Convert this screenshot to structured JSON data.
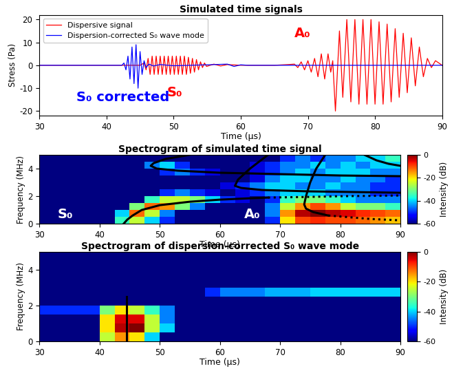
{
  "chart_data": [
    {
      "type": "line",
      "title": "Simulated time signals",
      "x_label": "Time (μs)",
      "y_label": "Stress (Pa)",
      "xlim": [
        30,
        90
      ],
      "xticks": [
        30,
        40,
        50,
        60,
        70,
        80,
        90
      ],
      "ylim": [
        -22,
        22
      ],
      "yticks": [
        -20,
        -10,
        0,
        10,
        20
      ],
      "legend": "upper left",
      "series": [
        {
          "name": "Dispersive signal",
          "color": "#ff0000",
          "x": [
            30,
            45,
            45.6,
            45.9,
            46.2,
            46.5,
            46.8,
            47.1,
            47.4,
            47.7,
            48.0,
            48.3,
            48.6,
            48.9,
            49.2,
            49.5,
            49.8,
            50.1,
            50.4,
            50.7,
            51.0,
            51.3,
            51.6,
            51.9,
            52.2,
            52.5,
            52.8,
            53.1,
            53.4,
            53.7,
            54.0,
            54.3,
            54.6,
            54.9,
            56,
            57,
            58,
            60,
            65,
            67,
            68,
            68.5,
            69,
            69.5,
            70,
            70.5,
            71,
            71.5,
            72,
            72.5,
            73,
            73.4,
            73.7,
            74.1,
            74.7,
            75.2,
            75.8,
            76.4,
            77.0,
            77.6,
            78.2,
            78.8,
            79.4,
            80.0,
            80.6,
            81.2,
            81.8,
            82.4,
            83.0,
            83.6,
            84.2,
            84.8,
            85.4,
            86.0,
            86.6,
            87.2,
            87.8,
            88.4,
            89.0,
            89.5,
            90
          ],
          "values": [
            0,
            0,
            1,
            -2,
            3,
            -4,
            4,
            -4,
            4,
            -4,
            4,
            -4,
            4,
            -4,
            4,
            -4,
            4,
            -4,
            4,
            -4,
            4,
            -4,
            4,
            -4,
            3.5,
            -3.5,
            3,
            -3,
            2.5,
            -2,
            1.5,
            -1,
            1,
            -0.5,
            0.5,
            -0.3,
            0.3,
            0,
            0,
            0.3,
            0.5,
            -1,
            1.5,
            -2,
            2,
            -3,
            3,
            -5,
            5,
            -6,
            5,
            -3,
            2,
            -20,
            15,
            -14,
            20,
            -16,
            20,
            -17,
            20,
            -17,
            20,
            -17,
            19,
            -17,
            18,
            -16,
            16,
            -14,
            14,
            -12,
            12,
            -9,
            8,
            -5,
            3,
            -1,
            2,
            1,
            0
          ]
        },
        {
          "name": "Dispersion-corrected S₀ wave mode",
          "color": "#0000ff",
          "x": [
            30,
            42.3,
            42.6,
            42.9,
            43.2,
            43.5,
            43.8,
            44.1,
            44.4,
            44.7,
            45.0,
            45.3,
            45.6,
            45.9,
            46.3,
            47,
            48,
            50,
            55,
            58,
            59,
            60,
            61,
            90
          ],
          "values": [
            0,
            0,
            1,
            -2,
            4,
            -6,
            8,
            -8,
            9,
            -10,
            6,
            -4,
            2,
            -1,
            0.5,
            -0.3,
            0.3,
            -0.2,
            0.2,
            0.5,
            -0.5,
            0.2,
            0,
            0
          ]
        }
      ],
      "annotations": [
        {
          "text": "S₀ corrected",
          "x": 35.5,
          "y": -14,
          "color": "#0000ff"
        },
        {
          "text": "S₀",
          "x": 49,
          "y": -12,
          "color": "#ff0000"
        },
        {
          "text": "A₀",
          "x": 68,
          "y": 14,
          "color": "#ff0000"
        }
      ]
    },
    {
      "type": "heatmap",
      "title": "Spectrogram of simulated time signal",
      "x_label": "Time (μs)",
      "y_label": "Frequency (MHz)",
      "xlim": [
        30,
        90
      ],
      "xticks": [
        30,
        40,
        50,
        60,
        70,
        80,
        90
      ],
      "ylim": [
        0,
        5
      ],
      "yticks": [
        0,
        2,
        4
      ],
      "x_bins": [
        30,
        32.5,
        35,
        37.5,
        40,
        42.5,
        45,
        47.5,
        50,
        52.5,
        55,
        57.5,
        60,
        62.5,
        65,
        67.5,
        70,
        72.5,
        75,
        77.5,
        80,
        82.5,
        85,
        87.5,
        90
      ],
      "y_bins": [
        0,
        0.5,
        1,
        1.5,
        2,
        2.5,
        3,
        3.5,
        4,
        4.5,
        5
      ],
      "cells": [
        [
          -60,
          -60,
          -60,
          -60,
          -60,
          -35,
          -25,
          -40,
          -50,
          -60,
          -60,
          -60,
          -60,
          -60,
          -60,
          -50,
          -20,
          -10,
          -8,
          -10,
          -10,
          -12,
          -15,
          -18
        ],
        [
          -60,
          -60,
          -60,
          -60,
          -60,
          -40,
          -12,
          -25,
          -45,
          -60,
          -60,
          -60,
          -60,
          -60,
          -60,
          -45,
          -15,
          -3,
          0,
          -3,
          -5,
          -8,
          -10,
          -12
        ],
        [
          -60,
          -60,
          -60,
          -60,
          -60,
          -60,
          -30,
          -12,
          -15,
          -30,
          -45,
          -60,
          -60,
          -60,
          -60,
          -45,
          -25,
          -15,
          -10,
          -15,
          -25,
          -30,
          -30,
          -35
        ],
        [
          -60,
          -60,
          -60,
          -60,
          -60,
          -60,
          -60,
          -35,
          -25,
          -25,
          -30,
          -40,
          -50,
          -55,
          -60,
          -50,
          -35,
          -30,
          -30,
          -35,
          -40,
          -45,
          -45,
          -45
        ],
        [
          -60,
          -60,
          -60,
          -60,
          -60,
          -60,
          -60,
          -60,
          -50,
          -45,
          -50,
          -55,
          -60,
          -55,
          -50,
          -45,
          -40,
          -40,
          -40,
          -45,
          -45,
          -45,
          -50,
          -50
        ],
        [
          -60,
          -60,
          -60,
          -60,
          -60,
          -60,
          -60,
          -60,
          -60,
          -60,
          -60,
          -60,
          -55,
          -50,
          -45,
          -40,
          -40,
          -45,
          -45,
          -40,
          -45,
          -45,
          -50,
          -50
        ],
        [
          -60,
          -60,
          -60,
          -60,
          -60,
          -60,
          -60,
          -60,
          -60,
          -60,
          -60,
          -60,
          -60,
          -60,
          -55,
          -45,
          -40,
          -40,
          -45,
          -45,
          -40,
          -45,
          -45,
          -50
        ],
        [
          -60,
          -60,
          -60,
          -60,
          -60,
          -60,
          -60,
          -60,
          -50,
          -45,
          -50,
          -55,
          -60,
          -60,
          -55,
          -50,
          -45,
          -40,
          -45,
          -40,
          -40,
          -40,
          -45,
          -45
        ],
        [
          -60,
          -60,
          -60,
          -60,
          -60,
          -60,
          -60,
          -45,
          -40,
          -50,
          -60,
          -60,
          -60,
          -60,
          -55,
          -50,
          -45,
          -45,
          -40,
          -45,
          -40,
          -45,
          -40,
          -40
        ],
        [
          -60,
          -60,
          -60,
          -60,
          -60,
          -60,
          -60,
          -60,
          -60,
          -60,
          -60,
          -60,
          -60,
          -60,
          -60,
          -60,
          -50,
          -45,
          -50,
          -45,
          -45,
          -40,
          -40,
          -35
        ]
      ],
      "colorbar": {
        "label": "Intensity (dB)",
        "range": [
          -60,
          0
        ],
        "ticks": [
          0,
          -20,
          -40,
          -60
        ]
      },
      "curves": [
        {
          "x": [
            44,
            44.6,
            45.5,
            47,
            50,
            55,
            60,
            65,
            68
          ],
          "y": [
            0,
            0.3,
            0.6,
            1.0,
            1.35,
            1.6,
            1.75,
            1.85,
            1.9
          ],
          "line_style": "solid"
        },
        {
          "x": [
            68,
            75,
            80,
            90
          ],
          "y": [
            1.9,
            1.95,
            2.0,
            2.05
          ],
          "line_style": "dotted"
        },
        {
          "x": [
            77.5,
            76,
            75,
            74.3,
            74,
            74.3,
            75.5,
            78
          ],
          "y": [
            5,
            4,
            3,
            2,
            1.4,
            1.1,
            0.85,
            0.6
          ],
          "line_style": "solid"
        },
        {
          "x": [
            78,
            85,
            90
          ],
          "y": [
            0.6,
            0.35,
            0.25
          ],
          "line_style": "dotted"
        },
        {
          "x": [
            55,
            51,
            49,
            48.5,
            49.5,
            53,
            60,
            70,
            80,
            90
          ],
          "y": [
            5,
            4.7,
            4.4,
            4.2,
            4.0,
            3.85,
            3.7,
            3.6,
            3.5,
            3.45
          ],
          "line_style": "solid"
        },
        {
          "x": [
            68,
            65,
            63,
            62.5,
            63.5,
            67,
            75,
            90
          ],
          "y": [
            5,
            4,
            3.2,
            2.75,
            2.6,
            2.45,
            2.35,
            2.25
          ],
          "line_style": "solid"
        },
        {
          "x": [
            84,
            86,
            88,
            90
          ],
          "y": [
            5,
            4.6,
            4.35,
            4.2
          ],
          "line_style": "solid"
        }
      ],
      "annotations": [
        {
          "text": "S₀",
          "x": 33,
          "y": 0.7,
          "color": "#ffffff"
        },
        {
          "text": "A₀",
          "x": 64,
          "y": 0.7,
          "color": "#ffffff"
        }
      ]
    },
    {
      "type": "heatmap",
      "title": "Spectrogram of dispersion-corrected S₀ wave mode",
      "x_label": "Time (μs)",
      "y_label": "Frequency (MHz)",
      "xlim": [
        30,
        90
      ],
      "xticks": [
        30,
        40,
        50,
        60,
        70,
        80,
        90
      ],
      "ylim": [
        0,
        5
      ],
      "yticks": [
        0,
        2,
        4
      ],
      "x_bins": [
        30,
        32.5,
        35,
        37.5,
        40,
        42.5,
        45,
        47.5,
        50,
        52.5,
        55,
        57.5,
        60,
        62.5,
        65,
        67.5,
        70,
        72.5,
        75,
        77.5,
        80,
        82.5,
        85,
        87.5,
        90
      ],
      "y_bins": [
        0,
        0.5,
        1,
        1.5,
        2,
        2.5,
        3,
        3.5,
        4,
        4.5,
        5
      ],
      "cells": [
        [
          -60,
          -60,
          -60,
          -60,
          -25,
          -15,
          -20,
          -40,
          -60,
          -60,
          -60,
          -60,
          -60,
          -60,
          -60,
          -60,
          -60,
          -60,
          -60,
          -60,
          -60,
          -60,
          -60,
          -60
        ],
        [
          -60,
          -60,
          -60,
          -60,
          -20,
          -3,
          0,
          -25,
          -40,
          -60,
          -60,
          -60,
          -60,
          -60,
          -60,
          -60,
          -60,
          -60,
          -60,
          -60,
          -60,
          -60,
          -60,
          -60
        ],
        [
          -60,
          -60,
          -60,
          -60,
          -20,
          -5,
          -5,
          -25,
          -45,
          -60,
          -60,
          -60,
          -60,
          -60,
          -60,
          -60,
          -60,
          -60,
          -60,
          -60,
          -60,
          -60,
          -60,
          -60
        ],
        [
          -50,
          -50,
          -50,
          -50,
          -30,
          -20,
          -25,
          -35,
          -45,
          -60,
          -60,
          -60,
          -60,
          -60,
          -60,
          -60,
          -60,
          -60,
          -60,
          -60,
          -60,
          -60,
          -60,
          -60
        ],
        [
          -60,
          -60,
          -60,
          -60,
          -60,
          -60,
          -60,
          -60,
          -60,
          -60,
          -60,
          -60,
          -60,
          -60,
          -60,
          -60,
          -60,
          -60,
          -60,
          -60,
          -60,
          -60,
          -60,
          -60
        ],
        [
          -60,
          -60,
          -60,
          -60,
          -60,
          -60,
          -60,
          -60,
          -60,
          -60,
          -60,
          -50,
          -45,
          -45,
          -45,
          -42,
          -42,
          -42,
          -40,
          -40,
          -40,
          -40,
          -40,
          -40
        ],
        [
          -60,
          -60,
          -60,
          -60,
          -60,
          -60,
          -60,
          -60,
          -60,
          -60,
          -60,
          -60,
          -60,
          -60,
          -60,
          -60,
          -60,
          -60,
          -60,
          -60,
          -60,
          -60,
          -60,
          -60
        ],
        [
          -60,
          -60,
          -60,
          -60,
          -60,
          -60,
          -60,
          -60,
          -60,
          -60,
          -60,
          -60,
          -60,
          -60,
          -60,
          -60,
          -60,
          -60,
          -60,
          -60,
          -60,
          -60,
          -60,
          -60
        ],
        [
          -60,
          -60,
          -60,
          -60,
          -60,
          -60,
          -60,
          -60,
          -60,
          -60,
          -60,
          -60,
          -60,
          -60,
          -60,
          -60,
          -60,
          -60,
          -60,
          -60,
          -60,
          -60,
          -60,
          -60
        ],
        [
          -60,
          -60,
          -60,
          -60,
          -60,
          -60,
          -60,
          -60,
          -60,
          -60,
          -60,
          -60,
          -60,
          -60,
          -60,
          -60,
          -60,
          -60,
          -60,
          -60,
          -60,
          -60,
          -60,
          -60
        ]
      ],
      "colorbar": {
        "label": "Intensity (dB)",
        "range": [
          -60,
          0
        ],
        "ticks": [
          0,
          -20,
          -40,
          -60
        ]
      },
      "curves": [
        {
          "x": [
            44.5,
            44.5
          ],
          "y": [
            0,
            2.5
          ],
          "line_style": "solid"
        }
      ]
    }
  ]
}
